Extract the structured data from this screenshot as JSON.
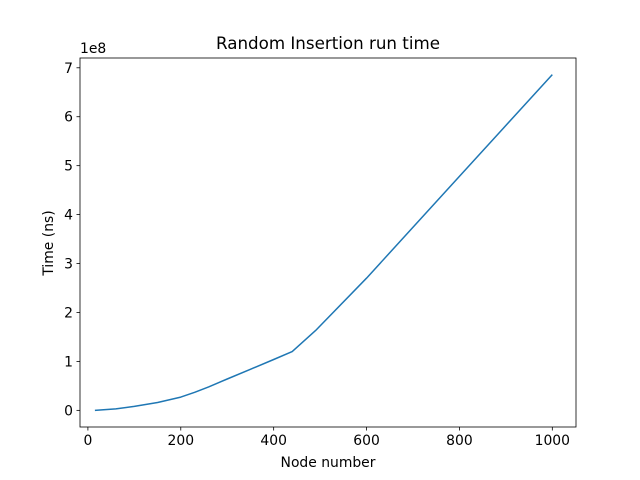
{
  "chart_data": {
    "type": "line",
    "title": "Random Insertion run time",
    "xlabel": "Node number",
    "ylabel": "Time (ns)",
    "y_offset_label": "1e8",
    "xlim": [
      -17,
      1051
    ],
    "ylim": [
      -0.34,
      7.2
    ],
    "x_ticks": [
      0,
      200,
      400,
      600,
      800,
      1000
    ],
    "x_tick_labels": [
      "0",
      "200",
      "400",
      "600",
      "800",
      "1000"
    ],
    "y_ticks": [
      0,
      1,
      2,
      3,
      4,
      5,
      6,
      7
    ],
    "y_tick_labels": [
      "0",
      "1",
      "2",
      "3",
      "4",
      "5",
      "6",
      "7"
    ],
    "grid": false,
    "line_color": "#1f77b4",
    "series": [
      {
        "x": [
          15,
          30,
          60,
          100,
          150,
          200,
          230,
          260,
          300,
          350,
          400,
          440,
          490,
          600,
          800,
          1000
        ],
        "y": [
          0.0,
          0.01,
          0.03,
          0.08,
          0.16,
          0.27,
          0.37,
          0.48,
          0.64,
          0.84,
          1.04,
          1.2,
          1.63,
          2.7,
          4.78,
          6.86
        ]
      }
    ]
  }
}
